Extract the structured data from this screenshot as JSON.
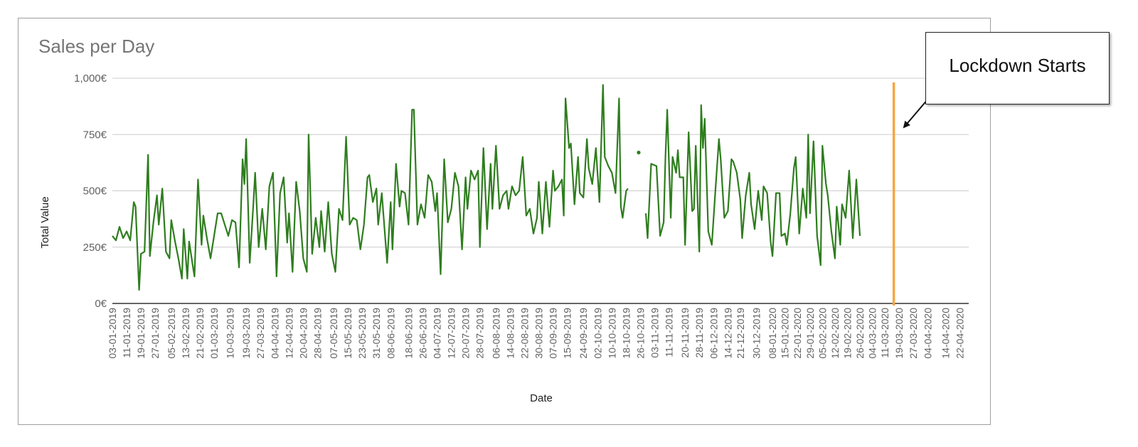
{
  "chart_data": {
    "type": "line",
    "title": "Sales per Day",
    "xlabel": "Date",
    "ylabel": "Total Value",
    "ylim": [
      0,
      1000
    ],
    "y_ticks": [
      "0€",
      "250€",
      "500€",
      "750€",
      "1,000€"
    ],
    "y_tick_values": [
      0,
      250,
      500,
      750,
      1000
    ],
    "x_start": "2019-01-03",
    "x_end": "2020-04-27",
    "x_ticks": [
      "03-01-2019",
      "11-01-2019",
      "19-01-2019",
      "27-01-2019",
      "05-02-2019",
      "13-02-2019",
      "21-02-2019",
      "01-03-2019",
      "10-03-2019",
      "19-03-2019",
      "27-03-2019",
      "04-04-2019",
      "12-04-2019",
      "20-04-2019",
      "28-04-2019",
      "07-05-2019",
      "15-05-2019",
      "23-05-2019",
      "31-05-2019",
      "08-06-2019",
      "18-06-2019",
      "26-06-2019",
      "04-07-2019",
      "12-07-2019",
      "20-07-2019",
      "28-07-2019",
      "06-08-2019",
      "14-08-2019",
      "22-08-2019",
      "30-08-2019",
      "07-09-2019",
      "15-09-2019",
      "24-09-2019",
      "02-10-2019",
      "10-10-2019",
      "18-10-2019",
      "26-10-2019",
      "03-11-2019",
      "11-11-2019",
      "20-11-2019",
      "28-11-2019",
      "06-12-2019",
      "14-12-2019",
      "21-12-2019",
      "30-12-2019",
      "08-01-2020",
      "15-01-2020",
      "22-01-2020",
      "29-01-2020",
      "05-02-2020",
      "12-02-2020",
      "19-02-2020",
      "26-02-2020",
      "04-03-2020",
      "11-03-2020",
      "19-03-2020",
      "27-03-2020",
      "04-04-2020",
      "14-04-2020",
      "22-04-2020"
    ],
    "series": [
      {
        "color": "#2e7d1e",
        "points": [
          [
            "2019-01-03",
            300
          ],
          [
            "2019-01-05",
            280
          ],
          [
            "2019-01-07",
            340
          ],
          [
            "2019-01-09",
            290
          ],
          [
            "2019-01-11",
            320
          ],
          [
            "2019-01-13",
            280
          ],
          [
            "2019-01-15",
            450
          ],
          [
            "2019-01-16",
            430
          ],
          [
            "2019-01-18",
            60
          ],
          [
            "2019-01-19",
            220
          ],
          [
            "2019-01-21",
            230
          ],
          [
            "2019-01-23",
            660
          ],
          [
            "2019-01-24",
            210
          ],
          [
            "2019-01-26",
            360
          ],
          [
            "2019-01-28",
            480
          ],
          [
            "2019-01-29",
            350
          ],
          [
            "2019-01-31",
            510
          ],
          [
            "2019-02-02",
            230
          ],
          [
            "2019-02-04",
            200
          ],
          [
            "2019-02-05",
            370
          ],
          [
            "2019-02-07",
            280
          ],
          [
            "2019-02-09",
            200
          ],
          [
            "2019-02-11",
            110
          ],
          [
            "2019-02-12",
            330
          ],
          [
            "2019-02-14",
            110
          ],
          [
            "2019-02-15",
            275
          ],
          [
            "2019-02-17",
            170
          ],
          [
            "2019-02-18",
            120
          ],
          [
            "2019-02-20",
            550
          ],
          [
            "2019-02-22",
            260
          ],
          [
            "2019-02-23",
            390
          ],
          [
            "2019-02-25",
            290
          ],
          [
            "2019-02-27",
            200
          ],
          [
            "2019-03-01",
            300
          ],
          [
            "2019-03-03",
            400
          ],
          [
            "2019-03-05",
            400
          ],
          [
            "2019-03-07",
            350
          ],
          [
            "2019-03-09",
            300
          ],
          [
            "2019-03-11",
            370
          ],
          [
            "2019-03-13",
            360
          ],
          [
            "2019-03-15",
            160
          ],
          [
            "2019-03-17",
            640
          ],
          [
            "2019-03-18",
            530
          ],
          [
            "2019-03-19",
            730
          ],
          [
            "2019-03-21",
            180
          ],
          [
            "2019-03-23",
            440
          ],
          [
            "2019-03-24",
            580
          ],
          [
            "2019-03-26",
            250
          ],
          [
            "2019-03-28",
            420
          ],
          [
            "2019-03-30",
            240
          ],
          [
            "2019-04-01",
            520
          ],
          [
            "2019-04-03",
            580
          ],
          [
            "2019-04-05",
            120
          ],
          [
            "2019-04-07",
            490
          ],
          [
            "2019-04-09",
            560
          ],
          [
            "2019-04-11",
            270
          ],
          [
            "2019-04-12",
            400
          ],
          [
            "2019-04-14",
            140
          ],
          [
            "2019-04-16",
            540
          ],
          [
            "2019-04-18",
            410
          ],
          [
            "2019-04-20",
            200
          ],
          [
            "2019-04-22",
            140
          ],
          [
            "2019-04-23",
            750
          ],
          [
            "2019-04-25",
            220
          ],
          [
            "2019-04-27",
            380
          ],
          [
            "2019-04-29",
            250
          ],
          [
            "2019-04-30",
            410
          ],
          [
            "2019-05-02",
            230
          ],
          [
            "2019-05-04",
            450
          ],
          [
            "2019-05-06",
            220
          ],
          [
            "2019-05-08",
            140
          ],
          [
            "2019-05-10",
            420
          ],
          [
            "2019-05-12",
            370
          ],
          [
            "2019-05-14",
            740
          ],
          [
            "2019-05-16",
            350
          ],
          [
            "2019-05-18",
            380
          ],
          [
            "2019-05-20",
            370
          ],
          [
            "2019-05-22",
            240
          ],
          [
            "2019-05-24",
            350
          ],
          [
            "2019-05-26",
            560
          ],
          [
            "2019-05-27",
            570
          ],
          [
            "2019-05-29",
            450
          ],
          [
            "2019-05-31",
            510
          ],
          [
            "2019-06-01",
            350
          ],
          [
            "2019-06-03",
            490
          ],
          [
            "2019-06-06",
            180
          ],
          [
            "2019-06-08",
            450
          ],
          [
            "2019-06-09",
            240
          ],
          [
            "2019-06-11",
            620
          ],
          [
            "2019-06-13",
            430
          ],
          [
            "2019-06-14",
            500
          ],
          [
            "2019-06-16",
            490
          ],
          [
            "2019-06-18",
            350
          ],
          [
            "2019-06-20",
            860
          ],
          [
            "2019-06-21",
            860
          ],
          [
            "2019-06-23",
            350
          ],
          [
            "2019-06-25",
            440
          ],
          [
            "2019-06-27",
            380
          ],
          [
            "2019-06-29",
            570
          ],
          [
            "2019-07-01",
            540
          ],
          [
            "2019-07-03",
            410
          ],
          [
            "2019-07-04",
            490
          ],
          [
            "2019-07-06",
            130
          ],
          [
            "2019-07-08",
            640
          ],
          [
            "2019-07-10",
            360
          ],
          [
            "2019-07-12",
            420
          ],
          [
            "2019-07-14",
            580
          ],
          [
            "2019-07-16",
            520
          ],
          [
            "2019-07-18",
            240
          ],
          [
            "2019-07-20",
            560
          ],
          [
            "2019-07-21",
            420
          ],
          [
            "2019-07-23",
            590
          ],
          [
            "2019-07-25",
            550
          ],
          [
            "2019-07-27",
            590
          ],
          [
            "2019-07-28",
            250
          ],
          [
            "2019-07-30",
            690
          ],
          [
            "2019-08-01",
            330
          ],
          [
            "2019-08-03",
            620
          ],
          [
            "2019-08-04",
            420
          ],
          [
            "2019-08-06",
            700
          ],
          [
            "2019-08-08",
            420
          ],
          [
            "2019-08-10",
            480
          ],
          [
            "2019-08-12",
            500
          ],
          [
            "2019-08-13",
            420
          ],
          [
            "2019-08-15",
            520
          ],
          [
            "2019-08-17",
            480
          ],
          [
            "2019-08-19",
            500
          ],
          [
            "2019-08-21",
            650
          ],
          [
            "2019-08-23",
            390
          ],
          [
            "2019-08-25",
            420
          ],
          [
            "2019-08-27",
            310
          ],
          [
            "2019-08-29",
            380
          ],
          [
            "2019-08-30",
            540
          ],
          [
            "2019-09-01",
            310
          ],
          [
            "2019-09-03",
            540
          ],
          [
            "2019-09-05",
            340
          ],
          [
            "2019-09-07",
            590
          ],
          [
            "2019-09-08",
            500
          ],
          [
            "2019-09-10",
            520
          ],
          [
            "2019-09-12",
            550
          ],
          [
            "2019-09-13",
            390
          ],
          [
            "2019-09-14",
            910
          ],
          [
            "2019-09-16",
            690
          ],
          [
            "2019-09-17",
            710
          ],
          [
            "2019-09-19",
            440
          ],
          [
            "2019-09-21",
            650
          ],
          [
            "2019-09-22",
            490
          ],
          [
            "2019-09-24",
            470
          ],
          [
            "2019-09-26",
            730
          ],
          [
            "2019-09-27",
            600
          ],
          [
            "2019-09-29",
            530
          ],
          [
            "2019-10-01",
            690
          ],
          [
            "2019-10-03",
            450
          ],
          [
            "2019-10-05",
            970
          ],
          [
            "2019-10-06",
            650
          ],
          [
            "2019-10-08",
            610
          ],
          [
            "2019-10-10",
            580
          ],
          [
            "2019-10-12",
            490
          ],
          [
            "2019-10-14",
            910
          ],
          [
            "2019-10-15",
            430
          ],
          [
            "2019-10-16",
            380
          ],
          [
            "2019-10-18",
            500
          ],
          [
            "2019-10-19",
            510
          ]
        ]
      },
      {
        "color": "#2e7d1e",
        "points": [
          [
            "2019-10-25",
            670
          ]
        ]
      },
      {
        "color": "#2e7d1e",
        "points": [
          [
            "2019-10-29",
            400
          ],
          [
            "2019-10-30",
            290
          ],
          [
            "2019-11-01",
            620
          ],
          [
            "2019-11-04",
            610
          ],
          [
            "2019-11-06",
            300
          ],
          [
            "2019-11-08",
            360
          ],
          [
            "2019-11-09",
            650
          ],
          [
            "2019-11-10",
            860
          ],
          [
            "2019-11-12",
            380
          ],
          [
            "2019-11-13",
            650
          ],
          [
            "2019-11-15",
            580
          ],
          [
            "2019-11-16",
            680
          ],
          [
            "2019-11-17",
            560
          ],
          [
            "2019-11-19",
            560
          ],
          [
            "2019-11-20",
            260
          ],
          [
            "2019-11-22",
            760
          ],
          [
            "2019-11-24",
            410
          ],
          [
            "2019-11-25",
            420
          ],
          [
            "2019-11-26",
            700
          ],
          [
            "2019-11-28",
            230
          ],
          [
            "2019-11-29",
            880
          ],
          [
            "2019-11-30",
            690
          ],
          [
            "2019-12-01",
            820
          ],
          [
            "2019-12-03",
            320
          ],
          [
            "2019-12-05",
            260
          ],
          [
            "2019-12-07",
            500
          ],
          [
            "2019-12-09",
            730
          ],
          [
            "2019-12-10",
            640
          ],
          [
            "2019-12-12",
            380
          ],
          [
            "2019-12-14",
            410
          ],
          [
            "2019-12-16",
            640
          ],
          [
            "2019-12-17",
            630
          ],
          [
            "2019-12-19",
            580
          ],
          [
            "2019-12-21",
            460
          ],
          [
            "2019-12-22",
            290
          ],
          [
            "2019-12-24",
            480
          ],
          [
            "2019-12-26",
            580
          ],
          [
            "2019-12-27",
            440
          ],
          [
            "2019-12-29",
            330
          ],
          [
            "2019-12-31",
            500
          ],
          [
            "2020-01-02",
            370
          ],
          [
            "2020-01-03",
            520
          ],
          [
            "2020-01-05",
            490
          ],
          [
            "2020-01-07",
            270
          ],
          [
            "2020-01-08",
            210
          ],
          [
            "2020-01-10",
            490
          ],
          [
            "2020-01-12",
            490
          ],
          [
            "2020-01-13",
            300
          ],
          [
            "2020-01-15",
            310
          ],
          [
            "2020-01-16",
            260
          ],
          [
            "2020-01-18",
            400
          ],
          [
            "2020-01-20",
            600
          ],
          [
            "2020-01-21",
            650
          ],
          [
            "2020-01-23",
            310
          ],
          [
            "2020-01-25",
            510
          ],
          [
            "2020-01-27",
            380
          ],
          [
            "2020-01-28",
            750
          ],
          [
            "2020-01-29",
            400
          ],
          [
            "2020-01-31",
            720
          ],
          [
            "2020-02-02",
            300
          ],
          [
            "2020-02-04",
            170
          ],
          [
            "2020-02-05",
            700
          ],
          [
            "2020-02-07",
            530
          ],
          [
            "2020-02-08",
            480
          ],
          [
            "2020-02-10",
            320
          ],
          [
            "2020-02-12",
            200
          ],
          [
            "2020-02-13",
            430
          ],
          [
            "2020-02-15",
            260
          ],
          [
            "2020-02-16",
            440
          ],
          [
            "2020-02-18",
            380
          ],
          [
            "2020-02-20",
            590
          ],
          [
            "2020-02-22",
            290
          ],
          [
            "2020-02-24",
            550
          ],
          [
            "2020-02-26",
            300
          ]
        ]
      }
    ],
    "annotation": {
      "date": "2020-03-16",
      "label": "Lockdown Starts",
      "line_color": "#f4a742"
    }
  }
}
